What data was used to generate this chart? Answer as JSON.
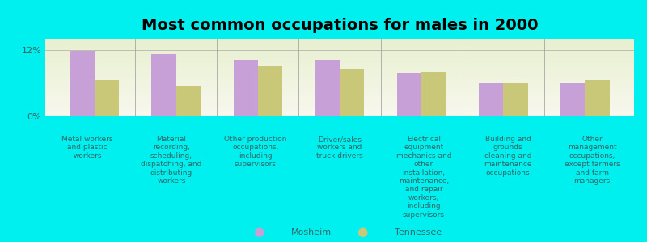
{
  "title": "Most common occupations for males in 2000",
  "background_color": "#00EFEF",
  "plot_background_top": "#E8F0D0",
  "plot_background_bottom": "#F5F8E8",
  "categories": [
    "Metal workers\nand plastic\nworkers",
    "Material\nrecording,\nscheduling,\ndispatching, and\ndistributing\nworkers",
    "Other production\noccupations,\nincluding\nsupervisors",
    "Driver/sales\nworkers and\ntruck drivers",
    "Electrical\nequipment\nmechanics and\nother\ninstallation,\nmaintenance,\nand repair\nworkers,\nincluding\nsupervisors",
    "Building and\ngrounds\ncleaning and\nmaintenance\noccupations",
    "Other\nmanagement\noccupations,\nexcept farmers\nand farm\nmanagers"
  ],
  "mosheim_values": [
    11.8,
    11.2,
    10.2,
    10.2,
    7.8,
    6.0,
    6.0
  ],
  "tennessee_values": [
    6.5,
    5.5,
    9.0,
    8.5,
    8.0,
    6.0,
    6.5
  ],
  "mosheim_color": "#C8A0D8",
  "tennessee_color": "#C8C878",
  "ylim": [
    0,
    14
  ],
  "yticks": [
    0,
    12
  ],
  "ytick_labels": [
    "0%",
    "12%"
  ],
  "legend_labels": [
    "Mosheim",
    "Tennessee"
  ],
  "bar_width": 0.3,
  "title_fontsize": 14,
  "label_fontsize": 6.5,
  "tick_fontsize": 8,
  "label_color": "#336666"
}
